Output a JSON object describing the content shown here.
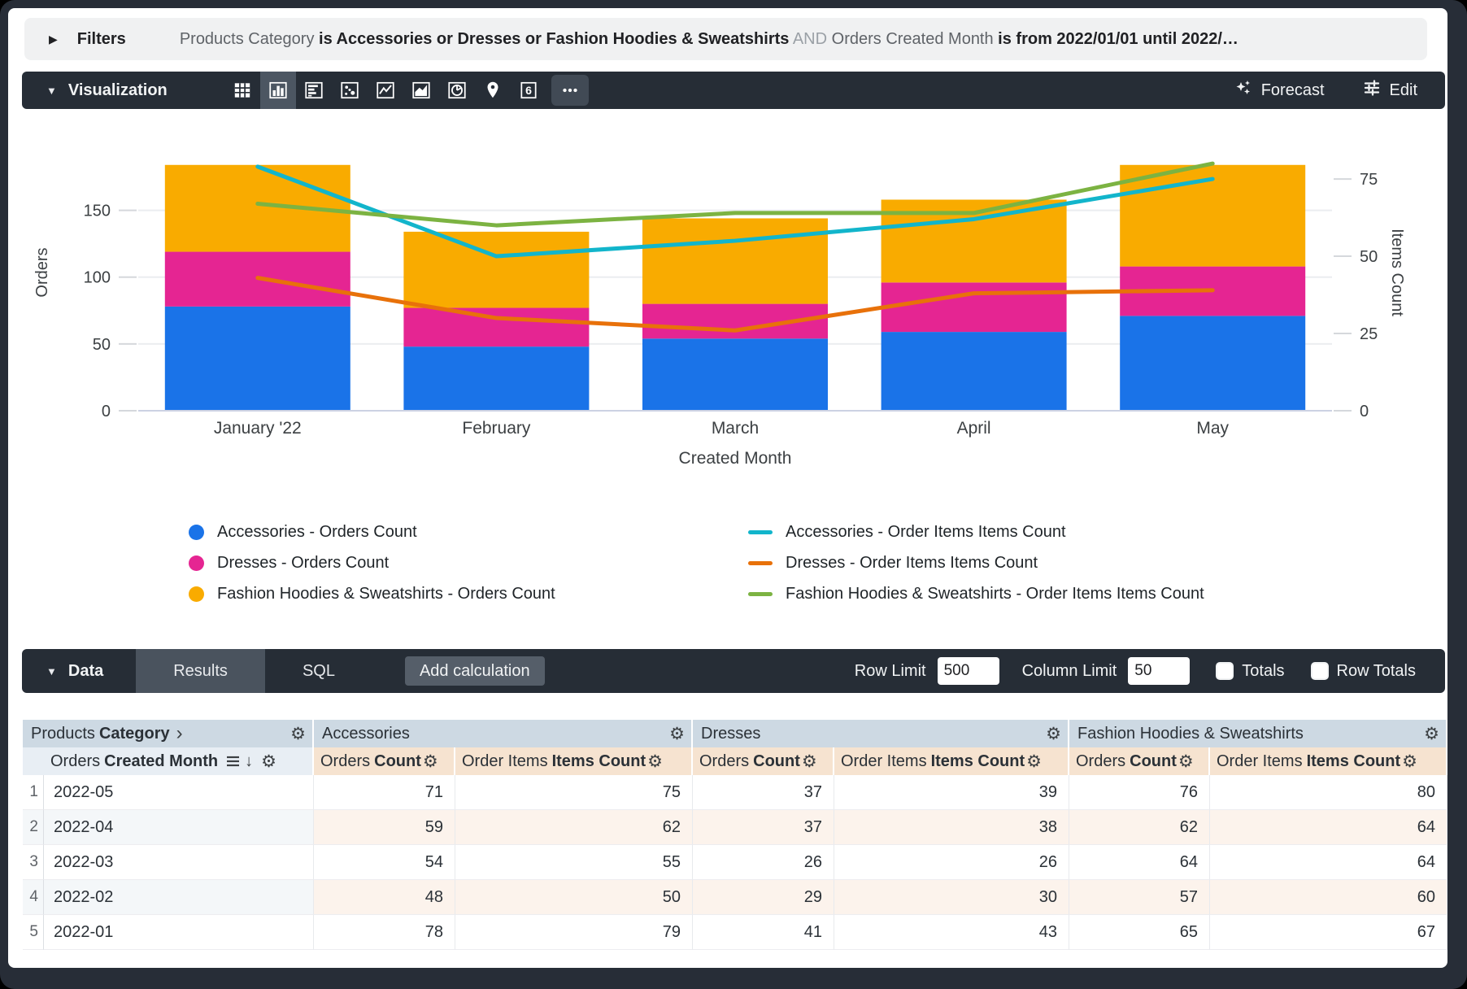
{
  "filters": {
    "label": "Filters",
    "parts": [
      {
        "text": "Products Category ",
        "style": "normal"
      },
      {
        "text": "is Accessories or Dresses or Fashion Hoodies & Sweatshirts",
        "style": "bold"
      },
      {
        "text": " AND ",
        "style": "light"
      },
      {
        "text": "Orders Created Month ",
        "style": "normal"
      },
      {
        "text": "is from 2022/01/01 until 2022/…",
        "style": "bold"
      }
    ]
  },
  "viz_toolbar": {
    "label": "Visualization",
    "icons": [
      {
        "name": "table",
        "selected": false
      },
      {
        "name": "column-chart",
        "selected": true
      },
      {
        "name": "bar-chart",
        "selected": false
      },
      {
        "name": "scatter-plot",
        "selected": false
      },
      {
        "name": "line-chart",
        "selected": false
      },
      {
        "name": "area-chart",
        "selected": false
      },
      {
        "name": "pie-chart",
        "selected": false
      },
      {
        "name": "map",
        "selected": false
      },
      {
        "name": "single-value",
        "selected": false
      },
      {
        "name": "more",
        "selected": false
      }
    ],
    "single_value_glyph": "6",
    "forecast_label": "Forecast",
    "edit_label": "Edit"
  },
  "chart_data": {
    "type": "combo: stacked bar + line, dual y-axes",
    "categories": [
      "January '22",
      "February",
      "March",
      "April",
      "May"
    ],
    "xlabel": "Created Month",
    "ylabel_left": "Orders",
    "ylabel_right": "Items Count",
    "left_ticks": [
      0,
      50,
      100,
      150
    ],
    "right_ticks": [
      0,
      25,
      50,
      75
    ],
    "left_axis_max": 207,
    "right_axis_max": 89.5,
    "bar_series": [
      {
        "name": "Accessories - Orders Count",
        "color": "#1A73E8",
        "values": [
          78,
          48,
          54,
          59,
          71
        ]
      },
      {
        "name": "Dresses - Orders Count",
        "color": "#E52592",
        "values": [
          41,
          29,
          26,
          37,
          37
        ]
      },
      {
        "name": "Fashion Hoodies & Sweatshirts - Orders Count",
        "color": "#F9AB00",
        "values": [
          65,
          57,
          64,
          62,
          76
        ]
      }
    ],
    "line_series": [
      {
        "name": "Accessories - Order Items Items Count",
        "color": "#12B5CB",
        "values": [
          79,
          50,
          55,
          62,
          75
        ]
      },
      {
        "name": "Dresses - Order Items Items Count",
        "color": "#E8710A",
        "values": [
          43,
          30,
          26,
          38,
          39
        ]
      },
      {
        "name": "Fashion Hoodies & Sweatshirts - Order Items Items Count",
        "color": "#7CB342",
        "values": [
          67,
          60,
          64,
          64,
          80
        ]
      }
    ],
    "legend_position": "bottom, two columns"
  },
  "legend": {
    "orders_series": [
      {
        "label": "Accessories - Orders Count",
        "color": "#1A73E8"
      },
      {
        "label": "Dresses - Orders Count",
        "color": "#E52592"
      },
      {
        "label": "Fashion Hoodies & Sweatshirts - Orders Count",
        "color": "#F9AB00"
      }
    ],
    "items_series": [
      {
        "label": "Accessories - Order Items Items Count",
        "color": "#12B5CB"
      },
      {
        "label": "Dresses - Order Items Items Count",
        "color": "#E8710A"
      },
      {
        "label": "Fashion Hoodies & Sweatshirts - Order Items Items Count",
        "color": "#7CB342"
      }
    ]
  },
  "data_toolbar": {
    "label": "Data",
    "tabs": [
      "Results",
      "SQL"
    ],
    "active_tab": "Results",
    "add_calculation_label": "Add calculation",
    "row_limit_label": "Row Limit",
    "row_limit_value": "500",
    "column_limit_label": "Column Limit",
    "column_limit_value": "50",
    "totals_label": "Totals",
    "row_totals_label": "Row Totals",
    "totals_checked": false,
    "row_totals_checked": false
  },
  "table": {
    "groups": [
      {
        "pre": "Products",
        "bold": "Category",
        "chevron": "›"
      },
      {
        "pre": "Accessories",
        "bold": ""
      },
      {
        "pre": "Dresses",
        "bold": ""
      },
      {
        "pre": "Fashion Hoodies & Sweatshirts",
        "bold": ""
      }
    ],
    "dim_header": {
      "pre": "Orders",
      "bold": "Created Month"
    },
    "measure_headers": [
      {
        "pre": "Orders",
        "bold": "Count"
      },
      {
        "pre": "Order Items",
        "bold": "Items Count"
      },
      {
        "pre": "Orders",
        "bold": "Count"
      },
      {
        "pre": "Order Items",
        "bold": "Items Count"
      },
      {
        "pre": "Orders",
        "bold": "Count"
      },
      {
        "pre": "Order Items",
        "bold": "Items Count"
      }
    ],
    "rows": [
      {
        "n": "1",
        "month": "2022-05",
        "values": [
          "71",
          "75",
          "37",
          "39",
          "76",
          "80"
        ]
      },
      {
        "n": "2",
        "month": "2022-04",
        "values": [
          "59",
          "62",
          "37",
          "38",
          "62",
          "64"
        ]
      },
      {
        "n": "3",
        "month": "2022-03",
        "values": [
          "54",
          "55",
          "26",
          "26",
          "64",
          "64"
        ]
      },
      {
        "n": "4",
        "month": "2022-02",
        "values": [
          "48",
          "50",
          "29",
          "30",
          "57",
          "60"
        ]
      },
      {
        "n": "5",
        "month": "2022-01",
        "values": [
          "78",
          "79",
          "41",
          "43",
          "65",
          "67"
        ]
      }
    ]
  }
}
